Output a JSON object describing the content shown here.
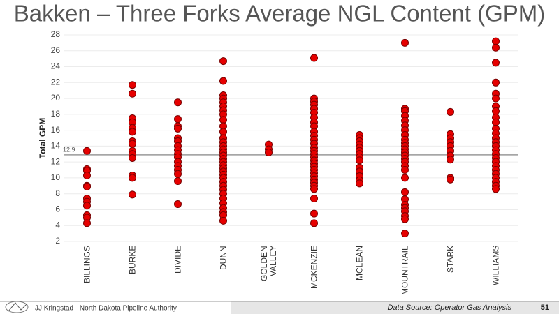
{
  "chart_data": {
    "type": "strip",
    "title": "Bakken – Three Forks Average NGL Content (GPM)",
    "y_label": "Total GPM",
    "categories": [
      "BILLINGS",
      "BURKE",
      "DIVIDE",
      "DUNN",
      "GOLDEN VALLEY",
      "MCKENZIE",
      "MCLEAN",
      "MOUNTRAIL",
      "STARK",
      "WILLIAMS"
    ],
    "values": [
      [
        13.4,
        11.1,
        10.9,
        10.3,
        9.0,
        8.9,
        7.4,
        7.0,
        6.5,
        5.3,
        5.0,
        4.3
      ],
      [
        21.7,
        20.6,
        17.5,
        17.0,
        16.3,
        15.8,
        14.6,
        14.3,
        13.4,
        13.0,
        12.5,
        10.3,
        10.0,
        7.9
      ],
      [
        19.5,
        17.4,
        16.5,
        16.2,
        15.0,
        14.6,
        14.0,
        13.5,
        13.0,
        12.6,
        12.0,
        11.5,
        11.0,
        10.5,
        9.6,
        6.7
      ],
      [
        24.7,
        22.2,
        20.4,
        20.0,
        19.5,
        19.0,
        18.5,
        18.0,
        17.3,
        16.5,
        15.8,
        15.0,
        14.5,
        14.0,
        13.6,
        13.2,
        12.8,
        12.4,
        12.0,
        11.6,
        11.2,
        10.8,
        10.4,
        10.0,
        9.5,
        9.0,
        8.5,
        8.0,
        7.4,
        6.8,
        6.2,
        5.7,
        5.3,
        4.6
      ],
      [
        14.2,
        13.6,
        13.2
      ],
      [
        25.1,
        20.0,
        19.6,
        19.2,
        18.7,
        18.2,
        17.6,
        17.0,
        16.5,
        15.8,
        15.3,
        14.8,
        14.3,
        13.8,
        13.4,
        13.0,
        12.6,
        12.2,
        11.8,
        11.4,
        11.0,
        10.6,
        10.2,
        9.8,
        9.4,
        9.0,
        8.6,
        7.4,
        5.5,
        4.3
      ],
      [
        15.4,
        15.0,
        14.6,
        14.2,
        13.8,
        13.4,
        13.0,
        12.6,
        12.2,
        11.3,
        10.8,
        10.2,
        9.7,
        9.3
      ],
      [
        27.0,
        18.7,
        18.4,
        17.8,
        17.2,
        16.6,
        16.0,
        15.4,
        14.8,
        14.4,
        14.0,
        13.6,
        13.2,
        12.8,
        12.4,
        12.0,
        11.5,
        11.0,
        10.0,
        8.2,
        7.3,
        6.6,
        6.2,
        5.8,
        5.2,
        4.8,
        3.0
      ],
      [
        18.3,
        15.5,
        15.0,
        14.5,
        14.0,
        13.4,
        12.8,
        12.3,
        10.0,
        9.8
      ],
      [
        27.2,
        26.4,
        24.5,
        22.0,
        20.6,
        20.0,
        19.0,
        18.4,
        17.6,
        17.0,
        16.2,
        15.6,
        15.0,
        14.5,
        14.0,
        13.5,
        13.0,
        12.5,
        12.0,
        11.5,
        11.0,
        10.5,
        10.0,
        9.5,
        9.0,
        8.6
      ]
    ],
    "color": "#e60000",
    "reference_line": 12.9,
    "ylim": [
      2,
      28
    ],
    "yticks": [
      2,
      4,
      6,
      8,
      10,
      12,
      14,
      16,
      18,
      20,
      22,
      24,
      26,
      28
    ],
    "grid": true
  },
  "footer": {
    "author": "JJ Kringstad - North Dakota Pipeline Authority",
    "source": "Data Source: Operator Gas Analysis",
    "page": "51"
  }
}
